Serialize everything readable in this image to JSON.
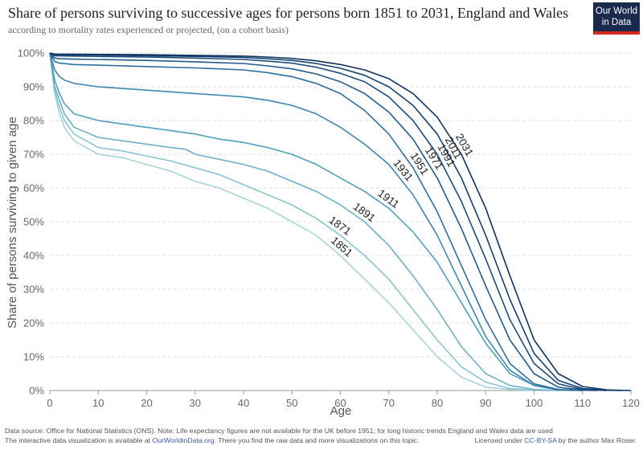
{
  "header": {
    "title": "Share of persons surviving  to successive ages for persons born 1851 to 2031, England and Wales",
    "subtitle": "according to mortality rates experienced or projected, (on a cohort basis)",
    "logo_line1": "Our World",
    "logo_line2": "in Data",
    "logo_bg": "#1a2a4f",
    "logo_accent": "#d42b21"
  },
  "footer": {
    "line1": "Data source: Office for National Statistics (ONS). Note: Life expectancy figures are not available for the UK before 1951; for long historic trends England and Wales data are used",
    "line2_prefix": "The interactive data visualization is available at ",
    "line2_link": "OurWorldinData.org",
    "line2_suffix": ". There you find the raw data and more visualizations on this topic.",
    "license_prefix": "Licensed under ",
    "license_link": "CC-BY-SA",
    "license_suffix": " by the author Max Roser."
  },
  "chart_data": {
    "type": "line",
    "xlabel": "Age",
    "ylabel": "Share of persons surviving to given age",
    "xlim": [
      0,
      120
    ],
    "ylim": [
      0,
      100
    ],
    "x_ticks": [
      0,
      10,
      20,
      30,
      40,
      50,
      60,
      70,
      80,
      90,
      100,
      110,
      120
    ],
    "y_ticks": [
      0,
      10,
      20,
      30,
      40,
      50,
      60,
      70,
      80,
      90,
      100
    ],
    "y_tick_labels": [
      "0%",
      "10%",
      "20%",
      "30%",
      "40%",
      "50%",
      "60%",
      "70%",
      "80%",
      "90%",
      "100%"
    ],
    "grid": "horizontal",
    "series": [
      {
        "name": "1851",
        "color": "#a9d3dc",
        "label_x": 80,
        "label_y": 61,
        "points": [
          [
            0,
            100
          ],
          [
            1,
            88
          ],
          [
            2,
            82
          ],
          [
            3,
            78
          ],
          [
            5,
            74
          ],
          [
            10,
            70
          ],
          [
            15,
            69
          ],
          [
            20,
            67
          ],
          [
            25,
            65
          ],
          [
            30,
            62
          ],
          [
            35,
            60
          ],
          [
            40,
            57
          ],
          [
            45,
            54
          ],
          [
            50,
            50
          ],
          [
            55,
            46
          ],
          [
            60,
            40
          ],
          [
            65,
            33
          ],
          [
            70,
            26
          ],
          [
            75,
            18
          ],
          [
            80,
            10
          ],
          [
            85,
            4
          ],
          [
            90,
            1
          ],
          [
            95,
            0.3
          ],
          [
            100,
            0
          ]
        ]
      },
      {
        "name": "1871",
        "color": "#8cc3d1",
        "label_x": 80,
        "label_y": 67,
        "points": [
          [
            0,
            100
          ],
          [
            1,
            89
          ],
          [
            2,
            84
          ],
          [
            3,
            80
          ],
          [
            5,
            76
          ],
          [
            10,
            72
          ],
          [
            15,
            71
          ],
          [
            20,
            69.5
          ],
          [
            25,
            68
          ],
          [
            30,
            66
          ],
          [
            35,
            64
          ],
          [
            40,
            61
          ],
          [
            45,
            58
          ],
          [
            50,
            55
          ],
          [
            55,
            51
          ],
          [
            60,
            46
          ],
          [
            65,
            40
          ],
          [
            70,
            33
          ],
          [
            75,
            24
          ],
          [
            80,
            15
          ],
          [
            85,
            7
          ],
          [
            90,
            2.5
          ],
          [
            95,
            0.6
          ],
          [
            100,
            0.1
          ],
          [
            103,
            0
          ]
        ]
      },
      {
        "name": "1891",
        "color": "#6fb0c7",
        "label_x": 82,
        "label_y": 71,
        "points": [
          [
            0,
            100
          ],
          [
            1,
            90
          ],
          [
            2,
            86
          ],
          [
            3,
            82
          ],
          [
            5,
            78
          ],
          [
            10,
            75
          ],
          [
            15,
            74
          ],
          [
            20,
            73
          ],
          [
            25,
            72
          ],
          [
            28,
            71.5
          ],
          [
            30,
            70
          ],
          [
            35,
            68.5
          ],
          [
            40,
            67
          ],
          [
            45,
            65
          ],
          [
            50,
            62
          ],
          [
            55,
            59
          ],
          [
            60,
            55
          ],
          [
            65,
            50
          ],
          [
            70,
            43
          ],
          [
            75,
            34
          ],
          [
            80,
            24
          ],
          [
            85,
            13
          ],
          [
            90,
            5
          ],
          [
            95,
            1.5
          ],
          [
            100,
            0.3
          ],
          [
            105,
            0
          ]
        ]
      },
      {
        "name": "1911",
        "color": "#529dbb",
        "label_x": 82,
        "label_y": 75,
        "points": [
          [
            0,
            100
          ],
          [
            1,
            92
          ],
          [
            2,
            88
          ],
          [
            3,
            85
          ],
          [
            5,
            82
          ],
          [
            10,
            80
          ],
          [
            15,
            79
          ],
          [
            20,
            78
          ],
          [
            25,
            77
          ],
          [
            30,
            76
          ],
          [
            35,
            74.5
          ],
          [
            40,
            73.5
          ],
          [
            45,
            72
          ],
          [
            50,
            70
          ],
          [
            55,
            67
          ],
          [
            60,
            63
          ],
          [
            65,
            59
          ],
          [
            70,
            54
          ],
          [
            75,
            47
          ],
          [
            80,
            38
          ],
          [
            85,
            26
          ],
          [
            90,
            14
          ],
          [
            95,
            5
          ],
          [
            100,
            1.5
          ],
          [
            105,
            0.2
          ],
          [
            108,
            0
          ]
        ]
      },
      {
        "name": "1931",
        "color": "#3e86ad",
        "label_x": 82,
        "label_y": 84,
        "points": [
          [
            0,
            100
          ],
          [
            1,
            95
          ],
          [
            2,
            93
          ],
          [
            3,
            92
          ],
          [
            5,
            91
          ],
          [
            10,
            90
          ],
          [
            15,
            89.5
          ],
          [
            20,
            89
          ],
          [
            25,
            88.5
          ],
          [
            30,
            88
          ],
          [
            35,
            87.5
          ],
          [
            40,
            87
          ],
          [
            45,
            86
          ],
          [
            50,
            84.5
          ],
          [
            55,
            82
          ],
          [
            60,
            78
          ],
          [
            65,
            73
          ],
          [
            70,
            67
          ],
          [
            75,
            58
          ],
          [
            80,
            46
          ],
          [
            85,
            31
          ],
          [
            90,
            16
          ],
          [
            95,
            6
          ],
          [
            100,
            1.5
          ],
          [
            105,
            0.2
          ],
          [
            110,
            0
          ]
        ]
      },
      {
        "name": "1951",
        "color": "#2d6e9c",
        "label_x": 87,
        "label_y": 86,
        "points": [
          [
            0,
            100
          ],
          [
            1,
            97.5
          ],
          [
            2,
            97
          ],
          [
            5,
            96.6
          ],
          [
            10,
            96.4
          ],
          [
            20,
            96
          ],
          [
            30,
            95.6
          ],
          [
            40,
            95
          ],
          [
            45,
            94.2
          ],
          [
            50,
            93
          ],
          [
            55,
            91
          ],
          [
            60,
            88
          ],
          [
            65,
            83
          ],
          [
            70,
            76
          ],
          [
            75,
            66
          ],
          [
            80,
            53
          ],
          [
            85,
            37
          ],
          [
            90,
            21
          ],
          [
            95,
            8
          ],
          [
            100,
            2
          ],
          [
            105,
            0.3
          ],
          [
            110,
            0
          ]
        ]
      },
      {
        "name": "1971",
        "color": "#225c8a",
        "label_x": 89,
        "label_y": 88,
        "points": [
          [
            0,
            100
          ],
          [
            1,
            98.5
          ],
          [
            2,
            98.3
          ],
          [
            5,
            98.2
          ],
          [
            10,
            98.1
          ],
          [
            20,
            97.8
          ],
          [
            30,
            97.4
          ],
          [
            40,
            96.9
          ],
          [
            45,
            96.2
          ],
          [
            50,
            95.3
          ],
          [
            55,
            93.8
          ],
          [
            60,
            91.5
          ],
          [
            65,
            88
          ],
          [
            70,
            82.5
          ],
          [
            75,
            74.5
          ],
          [
            80,
            63
          ],
          [
            85,
            48
          ],
          [
            90,
            31
          ],
          [
            95,
            15
          ],
          [
            100,
            5
          ],
          [
            105,
            1
          ],
          [
            110,
            0.1
          ],
          [
            113,
            0
          ]
        ]
      },
      {
        "name": "1991",
        "color": "#1b4d7c",
        "label_x": 90,
        "label_y": 89,
        "points": [
          [
            0,
            100
          ],
          [
            1,
            99.2
          ],
          [
            5,
            99.1
          ],
          [
            10,
            99
          ],
          [
            20,
            98.8
          ],
          [
            30,
            98.5
          ],
          [
            40,
            98.1
          ],
          [
            45,
            97.6
          ],
          [
            50,
            97
          ],
          [
            55,
            95.8
          ],
          [
            60,
            94
          ],
          [
            65,
            91.5
          ],
          [
            70,
            87
          ],
          [
            75,
            80
          ],
          [
            80,
            70
          ],
          [
            85,
            56
          ],
          [
            90,
            39
          ],
          [
            95,
            21
          ],
          [
            100,
            8
          ],
          [
            105,
            2
          ],
          [
            110,
            0.3
          ],
          [
            115,
            0
          ]
        ]
      },
      {
        "name": "2011",
        "color": "#16416f",
        "label_x": 91,
        "label_y": 91,
        "points": [
          [
            0,
            100
          ],
          [
            1,
            99.5
          ],
          [
            10,
            99.4
          ],
          [
            20,
            99.2
          ],
          [
            30,
            99
          ],
          [
            40,
            98.7
          ],
          [
            45,
            98.3
          ],
          [
            50,
            97.8
          ],
          [
            55,
            96.9
          ],
          [
            60,
            95.5
          ],
          [
            65,
            93.4
          ],
          [
            70,
            90
          ],
          [
            75,
            84.5
          ],
          [
            80,
            76
          ],
          [
            85,
            63
          ],
          [
            90,
            46
          ],
          [
            95,
            27
          ],
          [
            100,
            11
          ],
          [
            105,
            3
          ],
          [
            110,
            0.6
          ],
          [
            115,
            0.1
          ],
          [
            118,
            0
          ]
        ]
      },
      {
        "name": "2031",
        "color": "#0f3460",
        "label_x": 93,
        "label_y": 92,
        "points": [
          [
            0,
            100
          ],
          [
            1,
            99.7
          ],
          [
            10,
            99.6
          ],
          [
            20,
            99.5
          ],
          [
            30,
            99.3
          ],
          [
            40,
            99.1
          ],
          [
            45,
            98.8
          ],
          [
            50,
            98.4
          ],
          [
            55,
            97.7
          ],
          [
            60,
            96.6
          ],
          [
            65,
            95
          ],
          [
            70,
            92.4
          ],
          [
            75,
            88
          ],
          [
            80,
            81
          ],
          [
            85,
            70
          ],
          [
            90,
            54
          ],
          [
            95,
            34
          ],
          [
            100,
            15
          ],
          [
            105,
            5
          ],
          [
            110,
            1.2
          ],
          [
            115,
            0.2
          ],
          [
            120,
            0
          ]
        ]
      }
    ]
  }
}
